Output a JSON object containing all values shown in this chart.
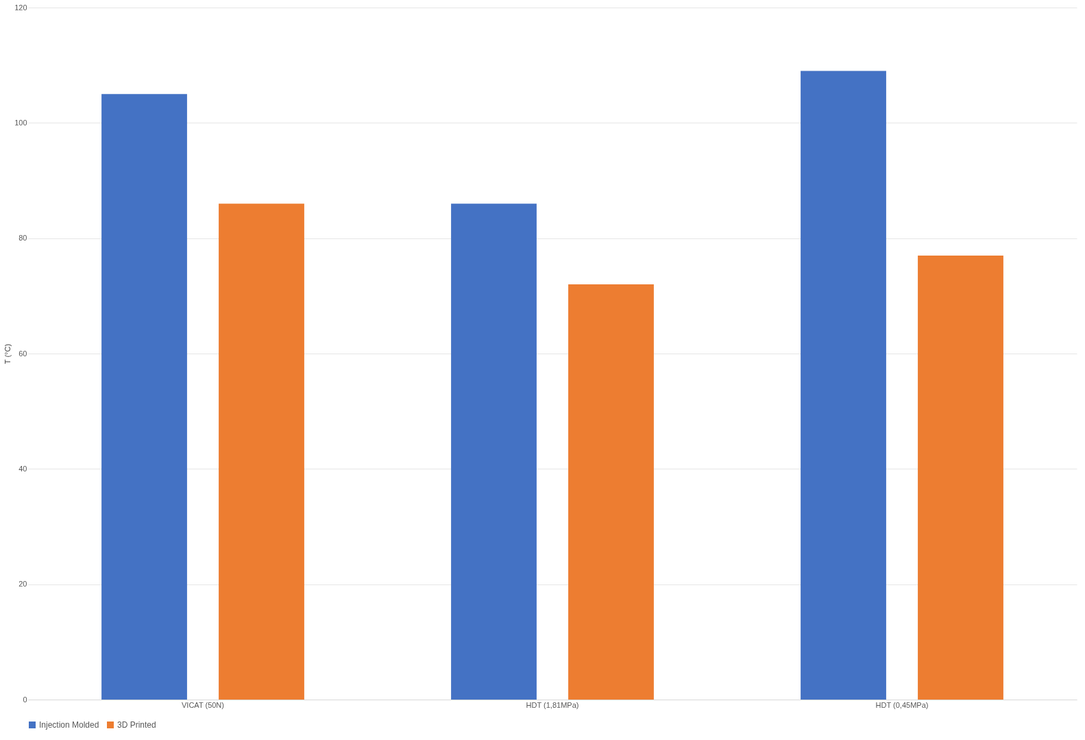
{
  "chart_data": {
    "type": "bar",
    "ylabel": "T (°C)",
    "categories": [
      "VICAT (50N)",
      "HDT (1,81MPa)",
      "HDT (0,45MPa)"
    ],
    "series": [
      {
        "name": "Injection Molded",
        "color": "#4472c4",
        "values": [
          105,
          86,
          109
        ]
      },
      {
        "name": "3D Printed",
        "color": "#ed7d31",
        "values": [
          86,
          72,
          77
        ]
      }
    ],
    "ylim": [
      0,
      120
    ],
    "yticks": [
      0,
      20,
      40,
      60,
      80,
      100,
      120
    ],
    "grid": "y",
    "legend": "bottom"
  }
}
